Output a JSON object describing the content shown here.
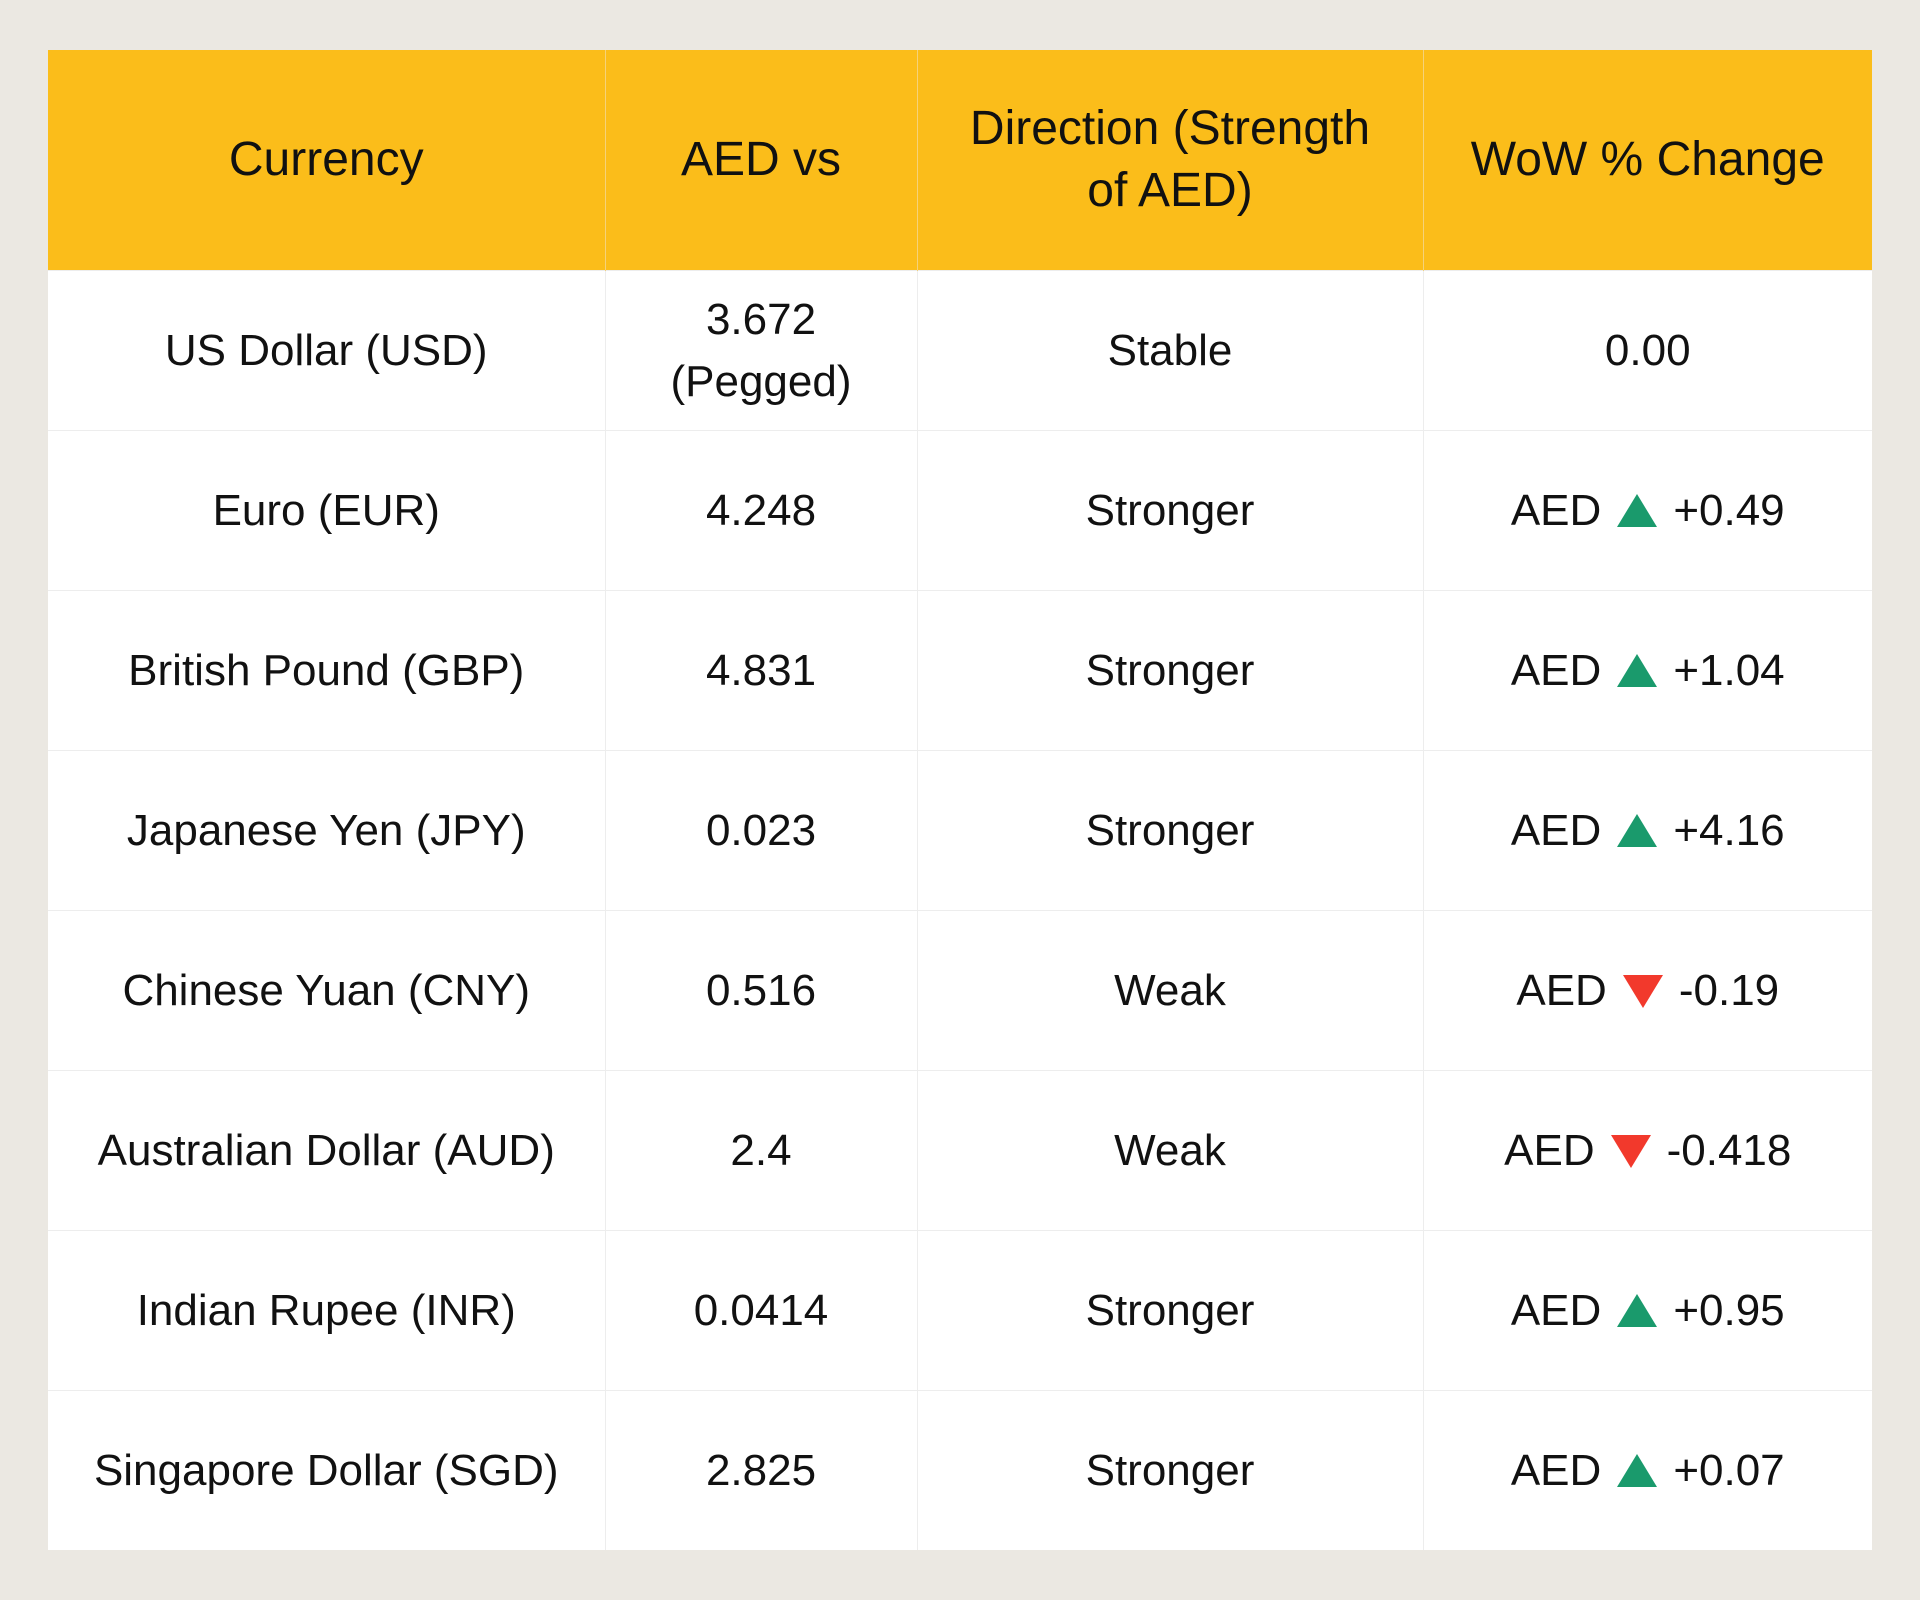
{
  "table": {
    "header": [
      "Currency",
      "AED vs",
      "Direction (Strength of AED)",
      "WoW % Change"
    ],
    "rows": [
      [
        "US Dollar (USD)",
        "3.672 (Pegged)",
        "Stable",
        {
          "change": "0.00"
        }
      ],
      [
        "Euro (EUR)",
        "4.248",
        "Stronger",
        {
          "prefix": "AED",
          "change": "+0.49"
        }
      ],
      [
        "British Pound (GBP)",
        "4.831",
        "Stronger",
        {
          "prefix": "AED",
          "change": "+1.04"
        }
      ],
      [
        "Japanese Yen (JPY)",
        "0.023",
        "Stronger",
        {
          "prefix": "AED",
          "change": "+4.16"
        }
      ],
      [
        "Chinese Yuan (CNY)",
        "0.516",
        "Weak",
        {
          "prefix": "AED",
          "change": "-0.19"
        }
      ],
      [
        "Australian Dollar (AUD)",
        "2.4",
        "Weak",
        {
          "prefix": "AED",
          "change": "-0.418"
        }
      ],
      [
        "Indian Rupee (INR)",
        "0.0414",
        "Stronger",
        {
          "prefix": "AED",
          "change": "+0.95"
        }
      ],
      [
        "Singapore Dollar (SGD)",
        "2.825",
        "Stronger",
        {
          "prefix": "AED",
          "change": "+0.07"
        }
      ]
    ]
  }
}
